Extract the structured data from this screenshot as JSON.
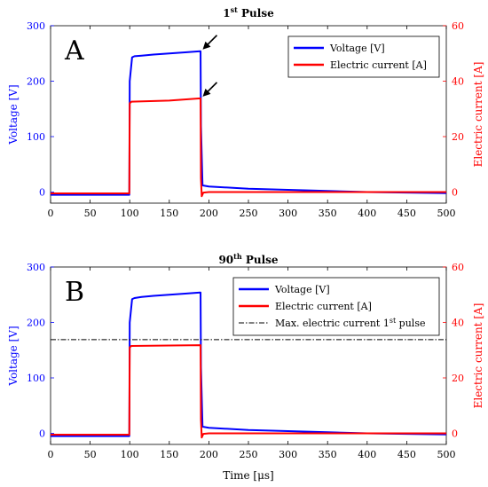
{
  "figure": {
    "x_axis_label": "Time [μs]"
  },
  "colors": {
    "voltage": "#0000ff",
    "current": "#ff0000",
    "reference": "#000000",
    "axis": "#000000"
  },
  "chart_data": [
    {
      "type": "line",
      "panel_letter": "A",
      "title": "1st Pulse",
      "title_base": "1",
      "title_sup": "st",
      "title_rest": " Pulse",
      "xlabel": "",
      "ylabel": "Voltage [V]",
      "ylabel_right": "Electric current [A]",
      "xlim": [
        0,
        500
      ],
      "ylim": [
        -20,
        300
      ],
      "ylim_right": [
        -4,
        60
      ],
      "xticks": [
        0,
        50,
        100,
        150,
        200,
        250,
        300,
        350,
        400,
        450,
        500
      ],
      "yticks": [
        0,
        100,
        200,
        300
      ],
      "yticks_right": [
        0,
        20,
        40,
        60
      ],
      "grid": false,
      "legend_position": "top-right",
      "series": [
        {
          "name": "Voltage [V]",
          "axis": "left",
          "x": [
            0,
            99.5,
            100,
            103,
            106,
            115,
            130,
            150,
            170,
            189,
            189.5,
            190,
            192,
            200,
            250,
            300,
            350,
            400,
            450,
            500
          ],
          "y": [
            -5,
            -5,
            200,
            243,
            245,
            246,
            248,
            250,
            252,
            254,
            254,
            120,
            12,
            10,
            6,
            4,
            2,
            0,
            -1,
            -2
          ]
        },
        {
          "name": "Electric current [A]",
          "axis": "right",
          "x": [
            0,
            99.5,
            100,
            102,
            150,
            189,
            189.5,
            190,
            191,
            193,
            200,
            300,
            400,
            500
          ],
          "y": [
            -0.5,
            -0.5,
            32,
            32.6,
            33,
            33.8,
            33.8,
            5,
            -1.5,
            -0.2,
            0,
            0,
            0,
            0
          ]
        }
      ],
      "annotations": [
        {
          "type": "arrow",
          "target": "voltage peak",
          "x": 190,
          "y_left": 254
        },
        {
          "type": "arrow",
          "target": "current peak",
          "x": 190,
          "y_right": 33.8
        }
      ]
    },
    {
      "type": "line",
      "panel_letter": "B",
      "title": "90th Pulse",
      "title_base": "90",
      "title_sup": "th",
      "title_rest": " Pulse",
      "xlabel": "Time [μs]",
      "ylabel": "Voltage [V]",
      "ylabel_right": "Electric current [A]",
      "xlim": [
        0,
        500
      ],
      "ylim": [
        -20,
        300
      ],
      "ylim_right": [
        -4,
        60
      ],
      "xticks": [
        0,
        50,
        100,
        150,
        200,
        250,
        300,
        350,
        400,
        450,
        500
      ],
      "yticks": [
        0,
        100,
        200,
        300
      ],
      "yticks_right": [
        0,
        20,
        40,
        60
      ],
      "grid": false,
      "legend_position": "top-right",
      "series": [
        {
          "name": "Voltage [V]",
          "axis": "left",
          "x": [
            0,
            99.5,
            100,
            103,
            106,
            115,
            130,
            150,
            170,
            189,
            189.5,
            190,
            192,
            200,
            250,
            300,
            350,
            400,
            450,
            500
          ],
          "y": [
            -5,
            -5,
            200,
            242,
            244,
            246,
            248,
            250,
            252,
            254,
            254,
            120,
            12,
            10,
            6,
            4,
            2,
            0,
            -1,
            -2
          ]
        },
        {
          "name": "Electric current [A]",
          "axis": "right",
          "x": [
            0,
            99.5,
            100,
            102,
            150,
            189,
            189.5,
            190,
            191,
            193,
            200,
            300,
            400,
            500
          ],
          "y": [
            -0.5,
            -0.5,
            31,
            31.5,
            31.7,
            31.8,
            31.8,
            5,
            -1.5,
            -0.2,
            0,
            0,
            0,
            0
          ]
        },
        {
          "name": "Max. electric current 1st pulse",
          "name_base": "Max. electric current 1",
          "name_sup": "st",
          "name_rest": " pulse",
          "axis": "right",
          "style": "dash-dot",
          "x": [
            0,
            500
          ],
          "y": [
            33.8,
            33.8
          ]
        }
      ]
    }
  ]
}
